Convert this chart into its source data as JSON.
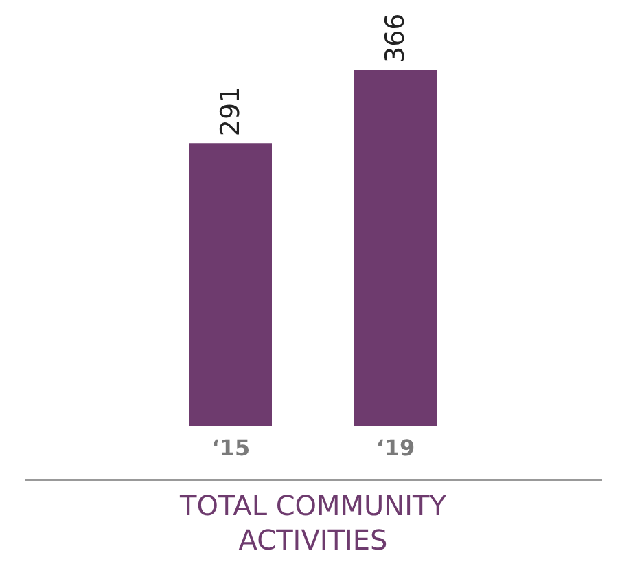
{
  "chart_data": {
    "type": "bar",
    "title": "TOTAL COMMUNITY ACTIVITIES",
    "categories": [
      "‘15",
      "‘19"
    ],
    "values": [
      291,
      366
    ],
    "color": "#6e3b6e",
    "data_labels": true
  }
}
